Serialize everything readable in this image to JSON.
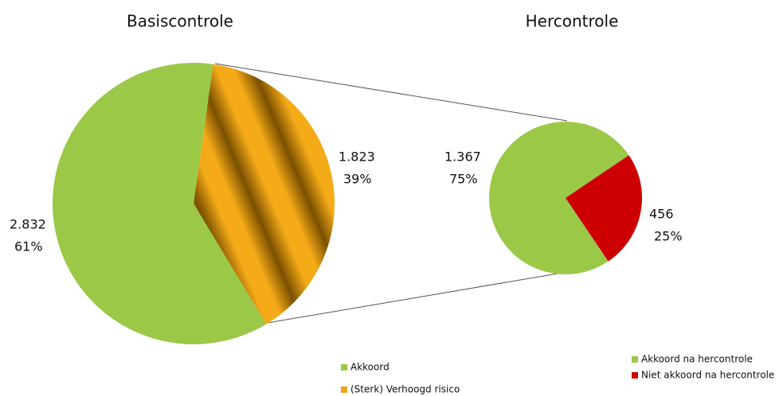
{
  "chart_data": [
    {
      "type": "pie",
      "title": "Basiscontrole",
      "categories": [
        "Akkoord",
        "(Sterk) Verhoogd risico"
      ],
      "values": [
        2832,
        1823
      ],
      "value_labels": [
        "2.832",
        "1.823"
      ],
      "percents": [
        61,
        39
      ],
      "percent_labels": [
        "61%",
        "39%"
      ],
      "colors": [
        "#9bc847",
        "#f0a418"
      ]
    },
    {
      "type": "pie",
      "title": "Hercontrole",
      "categories": [
        "Akkoord na hercontrole",
        "Niet akkoord na hercontrole"
      ],
      "values": [
        1367,
        456
      ],
      "value_labels": [
        "1.367",
        "456"
      ],
      "percents": [
        75,
        25
      ],
      "percent_labels": [
        "75%",
        "25%"
      ],
      "colors": [
        "#9bc847",
        "#cc0000"
      ]
    }
  ]
}
